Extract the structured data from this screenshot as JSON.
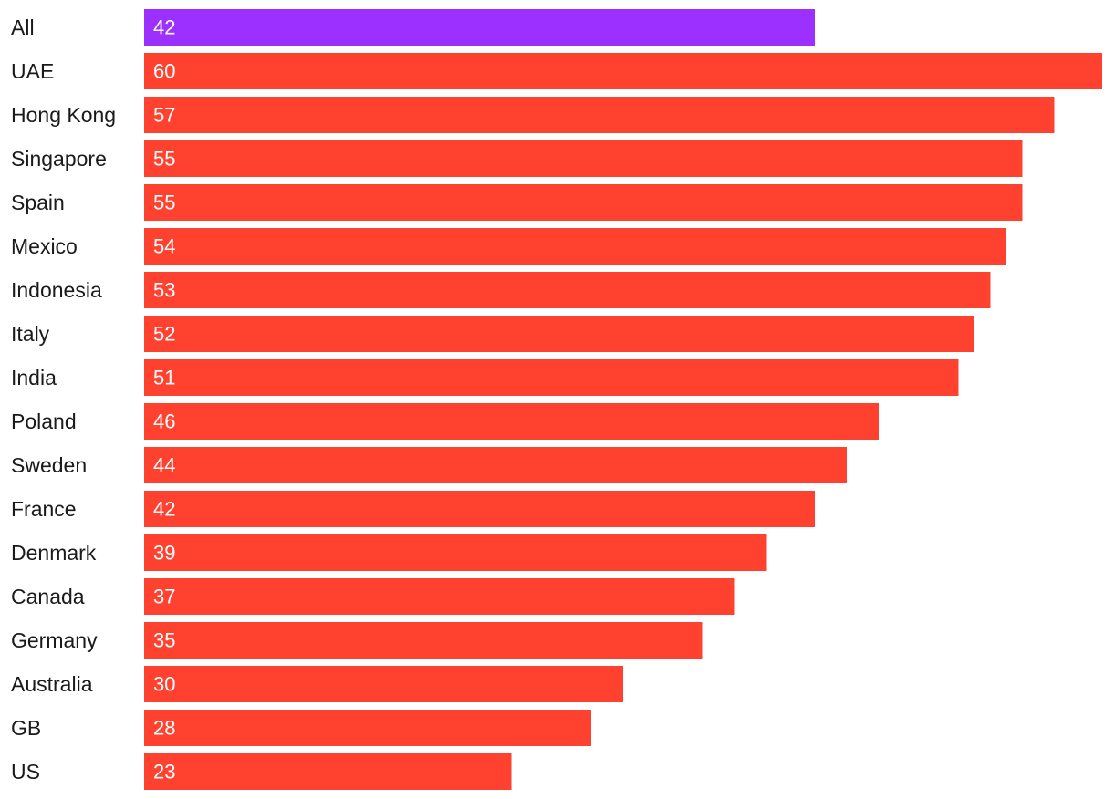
{
  "chart_data": {
    "type": "bar",
    "orientation": "horizontal",
    "categories": [
      "All",
      "UAE",
      "Hong Kong",
      "Singapore",
      "Spain",
      "Mexico",
      "Indonesia",
      "Italy",
      "India",
      "Poland",
      "Sweden",
      "France",
      "Denmark",
      "Canada",
      "Germany",
      "Australia",
      "GB",
      "US"
    ],
    "values": [
      42,
      60,
      57,
      55,
      55,
      54,
      53,
      52,
      51,
      46,
      44,
      42,
      39,
      37,
      35,
      30,
      28,
      23
    ],
    "value_labels": [
      "42",
      "60",
      "57",
      "55",
      "55",
      "54",
      "53",
      "52",
      "51",
      "46",
      "44",
      "42",
      "39",
      "37",
      "35",
      "30",
      "28",
      "23"
    ],
    "highlight_category": "All",
    "colors": {
      "bar": "#FF4130",
      "highlight": "#9B30FF",
      "category_text": "#1a1a1a",
      "value_text": "#ffffff"
    },
    "xlim": [
      0,
      60
    ],
    "grid": false,
    "legend": "none",
    "title": "",
    "xlabel": "",
    "ylabel": ""
  }
}
